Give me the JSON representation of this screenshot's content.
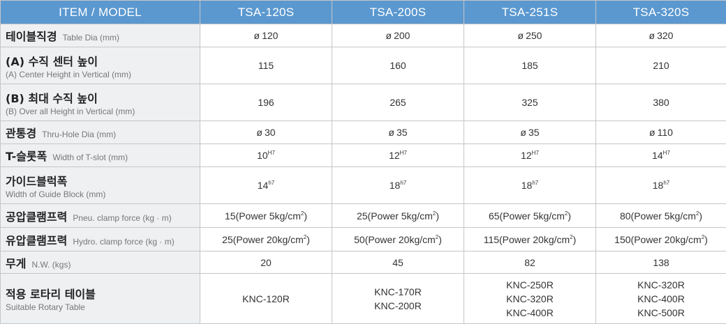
{
  "header": {
    "item_model": "ITEM / MODEL",
    "models": [
      "TSA-120S",
      "TSA-200S",
      "TSA-251S",
      "TSA-320S"
    ]
  },
  "rows": [
    {
      "ko": "테이블직경",
      "en": "Table Dia (mm)",
      "values": [
        {
          "sym": "ø",
          "num": "120"
        },
        {
          "sym": "ø",
          "num": "200"
        },
        {
          "sym": "ø",
          "num": "250"
        },
        {
          "sym": "ø",
          "num": "320"
        }
      ]
    },
    {
      "ko": "(A) 수직 센터 높이",
      "en": "(A) Center Height in Vertical (mm)",
      "values": [
        "115",
        "160",
        "185",
        "210"
      ]
    },
    {
      "ko": "(B) 최대 수직 높이",
      "en": "(B) Over all Height in Vertical (mm)",
      "values": [
        "196",
        "265",
        "325",
        "380"
      ]
    },
    {
      "ko": "관통경",
      "en": "Thru-Hole Dia (mm)",
      "values": [
        {
          "sym": "ø",
          "num": "30"
        },
        {
          "sym": "ø",
          "num": "35"
        },
        {
          "sym": "ø",
          "num": "35"
        },
        {
          "sym": "ø",
          "num": "110"
        }
      ]
    },
    {
      "ko": "T-슬롯폭",
      "en": "Width of T-slot (mm)",
      "values": [
        {
          "num": "10",
          "sup": "H7"
        },
        {
          "num": "12",
          "sup": "H7"
        },
        {
          "num": "12",
          "sup": "H7"
        },
        {
          "num": "14",
          "sup": "H7"
        }
      ]
    },
    {
      "ko": "가이드블럭폭",
      "en": "Width of Guide Block (mm)",
      "values": [
        {
          "num": "14",
          "sup": "h7"
        },
        {
          "num": "18",
          "sup": "h7"
        },
        {
          "num": "18",
          "sup": "h7"
        },
        {
          "num": "18",
          "sup": "h7"
        }
      ]
    },
    {
      "ko": "공압클램프력",
      "en": "Pneu. clamp force (kg · m)",
      "values": [
        {
          "num": "15(Power 5kg/cm",
          "sup": "2",
          "tail": ")"
        },
        {
          "num": "25(Power 5kg/cm",
          "sup": "2",
          "tail": ")"
        },
        {
          "num": "65(Power 5kg/cm",
          "sup": "2",
          "tail": ")"
        },
        {
          "num": "80(Power 5kg/cm",
          "sup": "2",
          "tail": ")"
        }
      ]
    },
    {
      "ko": "유압클램프력",
      "en": "Hydro. clamp force (kg · m)",
      "values": [
        {
          "num": "25(Power 20kg/cm",
          "sup": "2",
          "tail": ")"
        },
        {
          "num": "50(Power 20kg/cm",
          "sup": "2",
          "tail": ")"
        },
        {
          "num": "115(Power 20kg/cm",
          "sup": "2",
          "tail": ")"
        },
        {
          "num": "150(Power 20kg/cm",
          "sup": "2",
          "tail": ")"
        }
      ]
    },
    {
      "ko": "무게",
      "en": "N.W. (kgs)",
      "values": [
        "20",
        "45",
        "82",
        "138"
      ]
    },
    {
      "ko": "적용 로타리 테이블",
      "en": "Suitable Rotary Table",
      "values": [
        [
          "KNC-120R"
        ],
        [
          "KNC-170R",
          "KNC-200R"
        ],
        [
          "KNC-250R",
          "KNC-320R",
          "KNC-400R"
        ],
        [
          "KNC-320R",
          "KNC-400R",
          "KNC-500R"
        ]
      ]
    }
  ]
}
